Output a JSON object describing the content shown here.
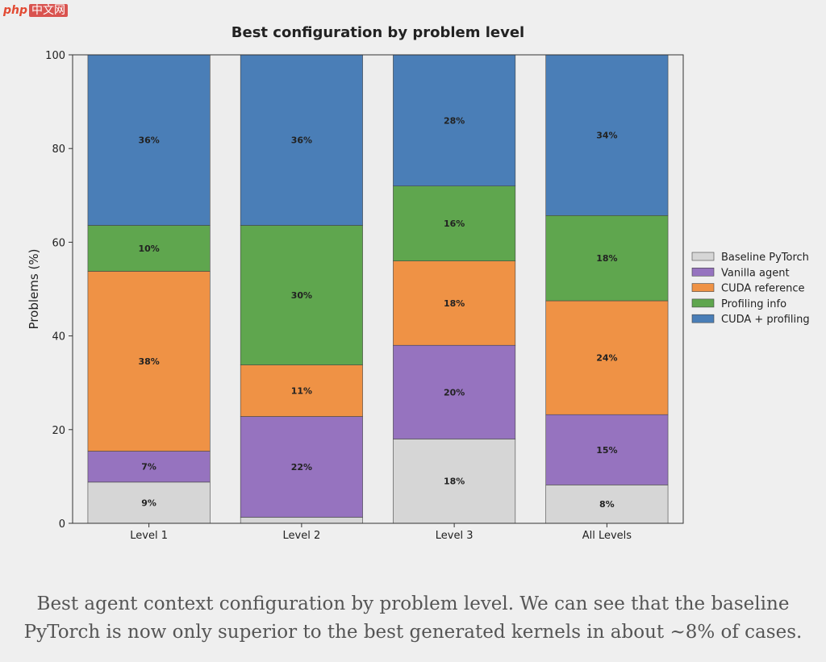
{
  "watermark": {
    "logo": "php",
    "text": "中文网"
  },
  "chart_data": {
    "type": "bar",
    "stacked": true,
    "title": "Best configuration by problem level",
    "xlabel": "",
    "ylabel": "Problems (%)",
    "ylim": [
      0,
      100
    ],
    "yticks": [
      0,
      20,
      40,
      60,
      80,
      100
    ],
    "grid": false,
    "legend_position": "right",
    "categories": [
      "Level 1",
      "Level 2",
      "Level 3",
      "All Levels"
    ],
    "series": [
      {
        "name": "Baseline PyTorch",
        "color": "#d6d6d6",
        "values": [
          8.8,
          1.3,
          18.0,
          8.2
        ],
        "labels": [
          "9%",
          "",
          "18%",
          "8%"
        ]
      },
      {
        "name": "Vanilla agent",
        "color": "#9673bf",
        "values": [
          6.6,
          21.5,
          20.0,
          15.0
        ],
        "labels": [
          "7%",
          "22%",
          "20%",
          "15%"
        ]
      },
      {
        "name": "CUDA reference",
        "color": "#ef9245",
        "values": [
          38.4,
          11.0,
          18.0,
          24.3
        ],
        "labels": [
          "38%",
          "11%",
          "18%",
          "24%"
        ]
      },
      {
        "name": "Profiling info",
        "color": "#5fa64e",
        "values": [
          9.8,
          29.8,
          16.0,
          18.2
        ],
        "labels": [
          "10%",
          "30%",
          "16%",
          "18%"
        ]
      },
      {
        "name": "CUDA + profiling",
        "color": "#4a7eb7",
        "values": [
          36.4,
          36.4,
          28.0,
          34.3
        ],
        "labels": [
          "36%",
          "36%",
          "28%",
          "34%"
        ]
      }
    ]
  },
  "caption": "Best agent context configuration by problem level. We can see that the baseline PyTorch is now only superior to the best generated kernels in about ~8% of cases."
}
